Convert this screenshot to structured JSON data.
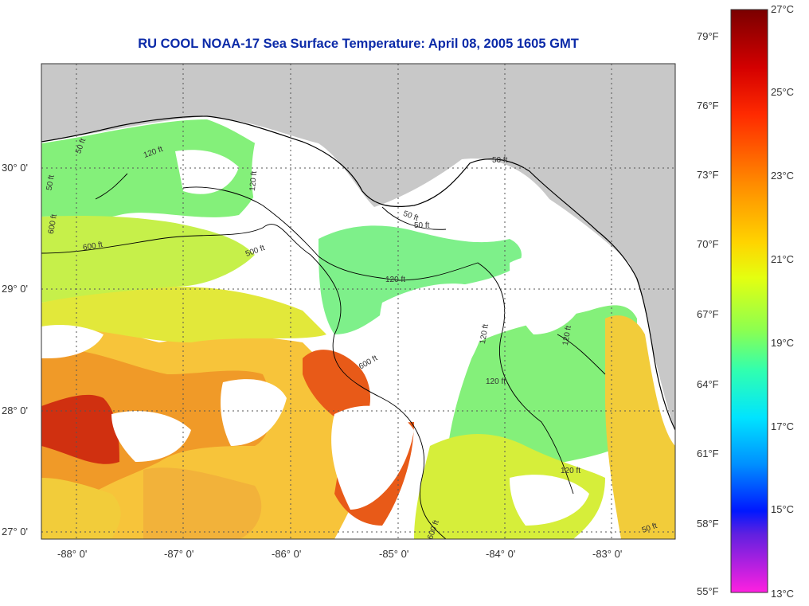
{
  "title": "RU COOL  NOAA-17  Sea Surface Temperature:  April 08, 2005 1605 GMT",
  "map": {
    "latitude_labels": [
      "30° 0'",
      "29° 0'",
      "28° 0'",
      "27° 0'"
    ],
    "longitude_labels": [
      "-88° 0'",
      "-87° 0'",
      "-86° 0'",
      "-85° 0'",
      "-84° 0'",
      "-83° 0'"
    ],
    "contour_labels": [
      "50 ft",
      "120 ft",
      "600 ft",
      "500 ft",
      "120 ft",
      "600 ft",
      "600 ft",
      "120 ft",
      "120 ft",
      "120 ft",
      "50 ft",
      "50 ft",
      "600 ft",
      "50 ft",
      "50 ft",
      "120 ft",
      "120 ft",
      "50 ft"
    ],
    "colors": {
      "land": "#c8c8c8",
      "cloud": "#ffffff",
      "grid": "#555555",
      "title": "#0b2aa8"
    }
  },
  "colorbar": {
    "fahrenheit_labels": [
      "79°F",
      "76°F",
      "73°F",
      "70°F",
      "67°F",
      "64°F",
      "61°F",
      "58°F",
      "55°F"
    ],
    "celsius_labels": [
      "27°C",
      "25°C",
      "23°C",
      "21°C",
      "19°C",
      "17°C",
      "15°C",
      "13°C"
    ],
    "range_celsius": [
      13,
      27
    ]
  }
}
